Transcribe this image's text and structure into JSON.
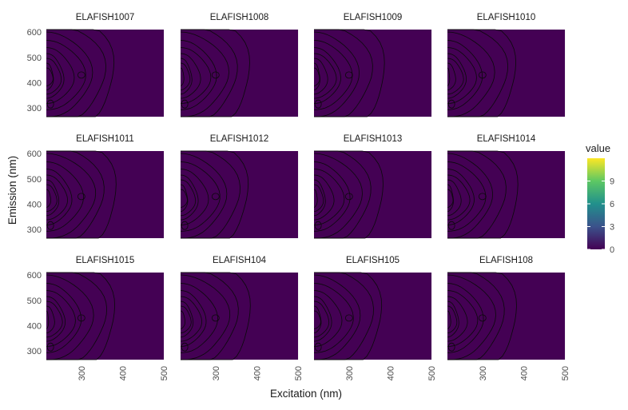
{
  "chart_data": {
    "type": "heatmap",
    "xlabel": "Excitation (nm)",
    "ylabel": "Emission (nm)",
    "xlim": [
      215,
      500
    ],
    "ylim": [
      265,
      610
    ],
    "x_ticks": [
      300,
      400,
      500
    ],
    "y_ticks": [
      300,
      400,
      500,
      600
    ],
    "panels": [
      {
        "title": "ELAFISH1007"
      },
      {
        "title": "ELAFISH1008"
      },
      {
        "title": "ELAFISH1009"
      },
      {
        "title": "ELAFISH1010"
      },
      {
        "title": "ELAFISH1011"
      },
      {
        "title": "ELAFISH1012"
      },
      {
        "title": "ELAFISH1013"
      },
      {
        "title": "ELAFISH1014"
      },
      {
        "title": "ELAFISH1015"
      },
      {
        "title": "ELAFISH104"
      },
      {
        "title": "ELAFISH105"
      },
      {
        "title": "ELAFISH108"
      }
    ],
    "legend": {
      "title": "value",
      "min": 0,
      "max": 12,
      "ticks": [
        0,
        3,
        6,
        9
      ],
      "position": "right",
      "palette": [
        "#440154",
        "#3b528b",
        "#21908c",
        "#5dc863",
        "#fde725"
      ]
    },
    "fill_color": "#440154"
  }
}
